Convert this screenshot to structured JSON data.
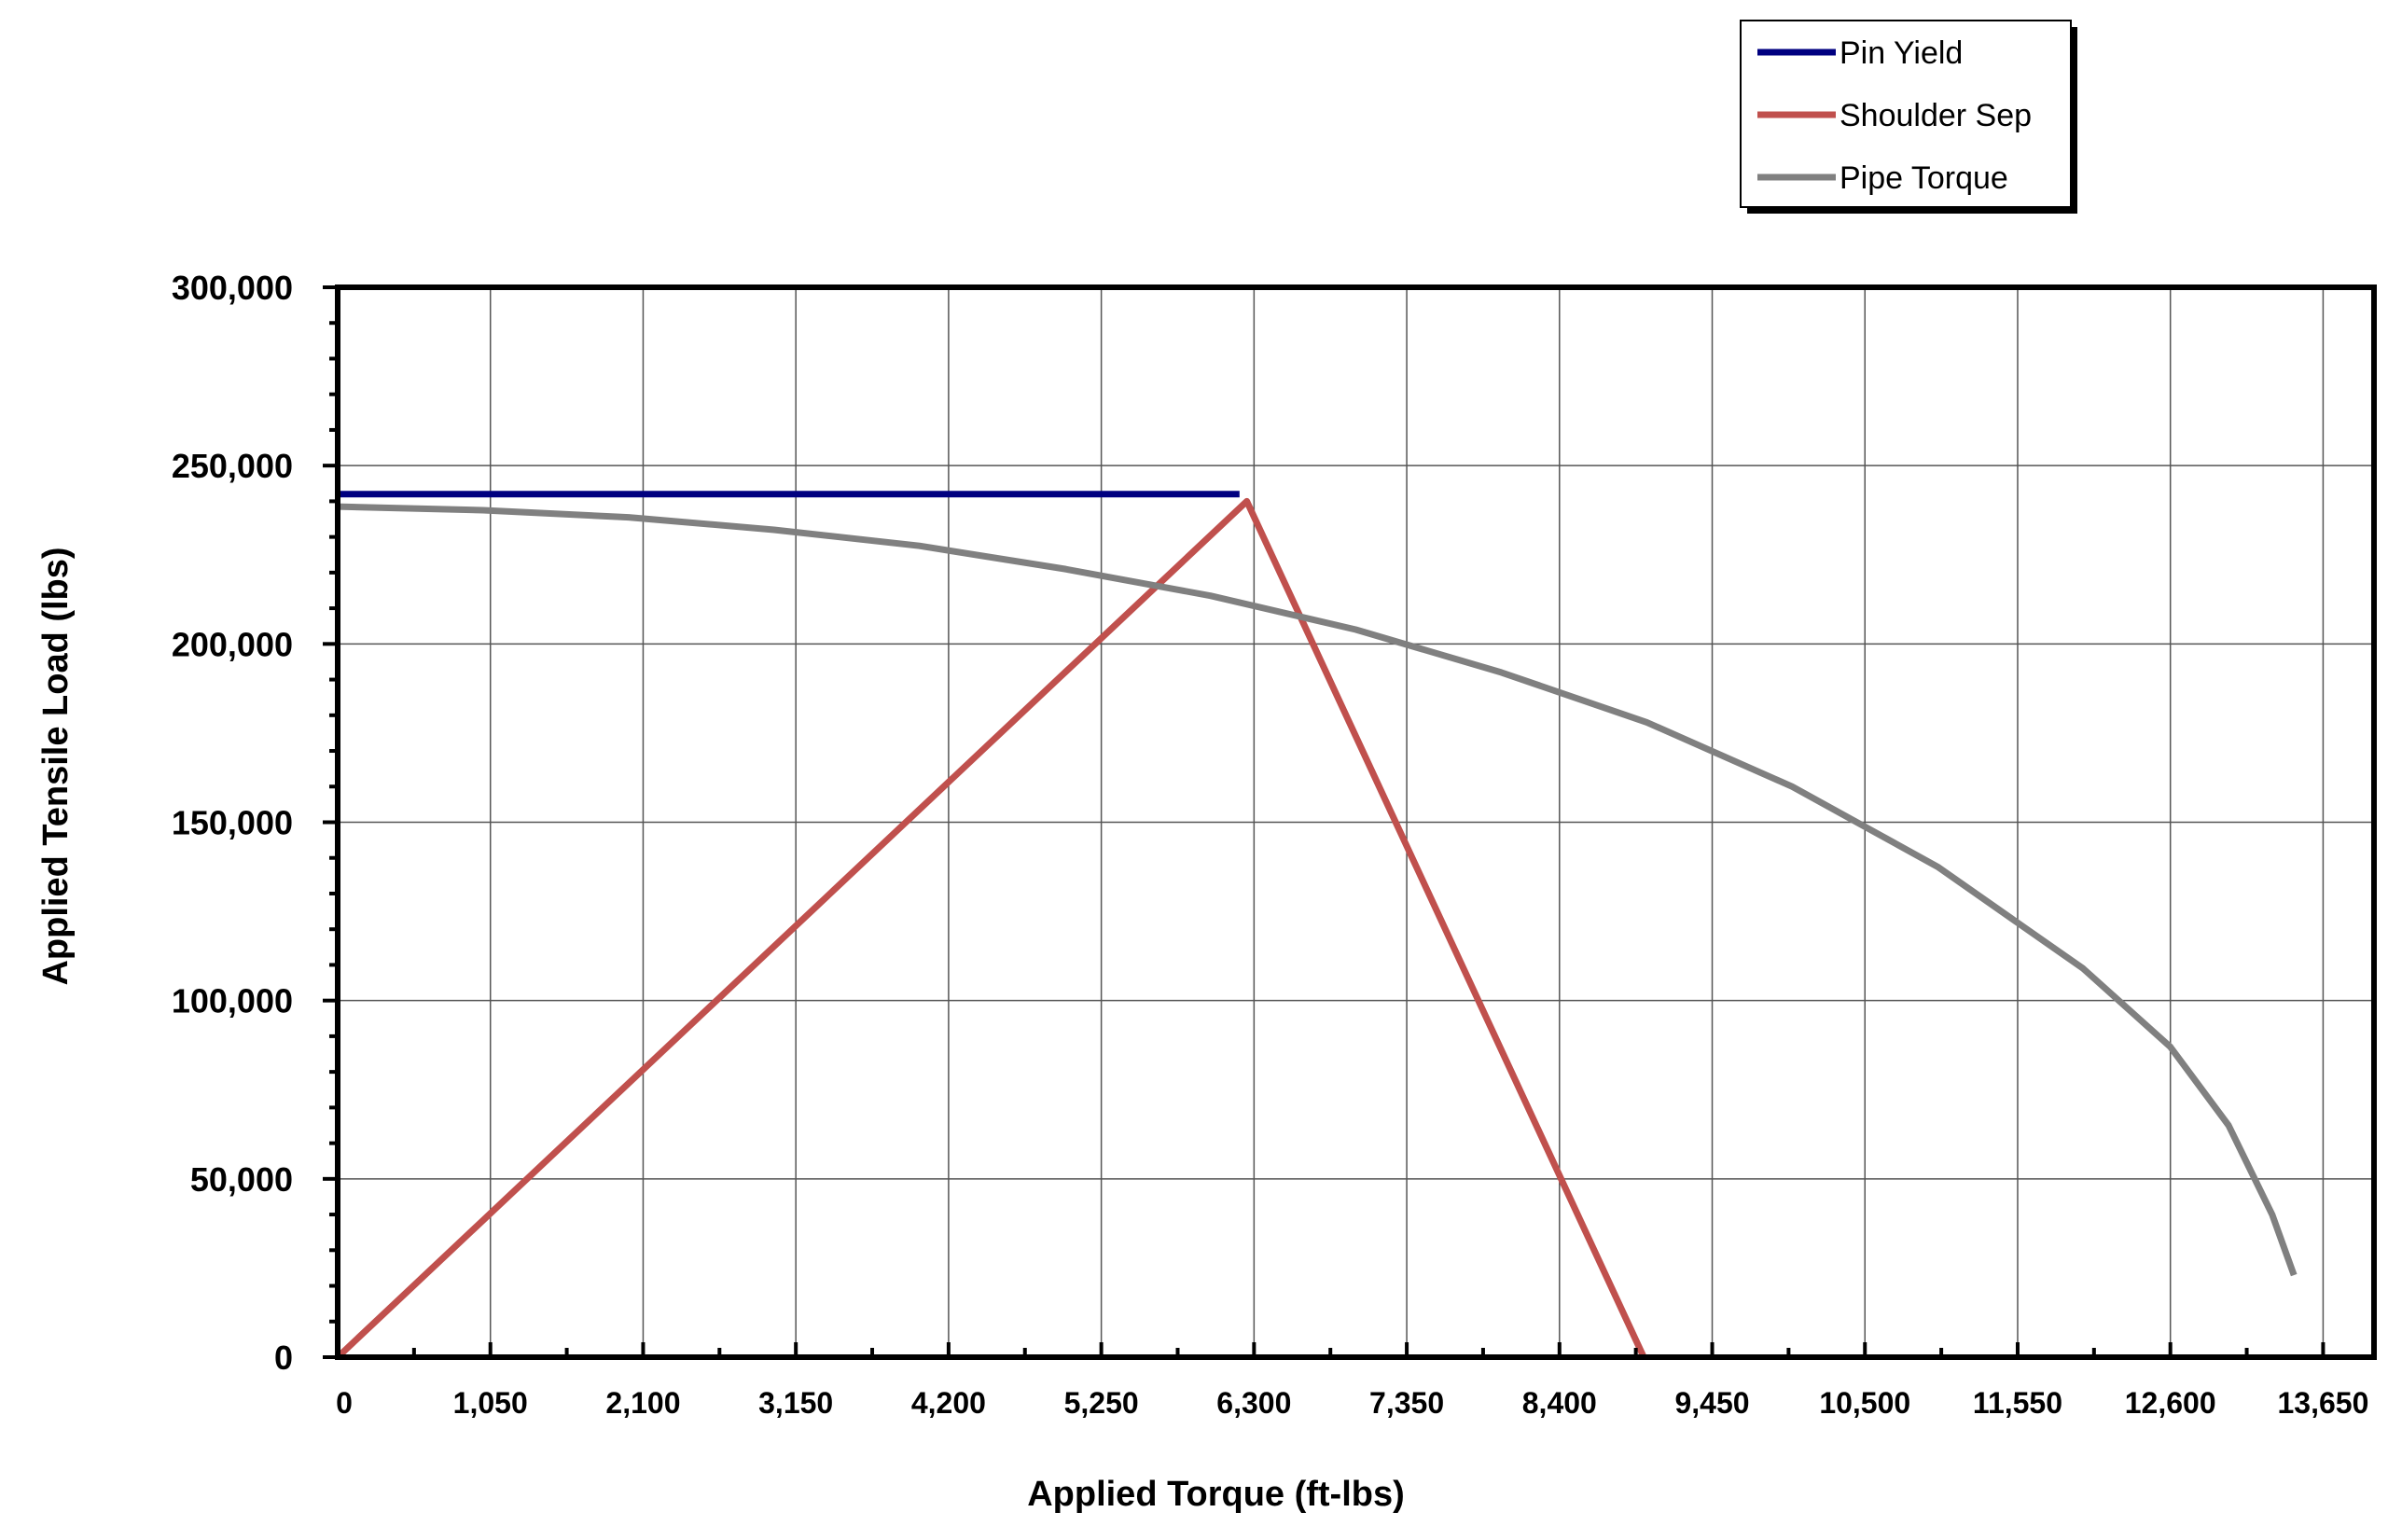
{
  "chart_data": {
    "type": "line",
    "xlabel": "Applied Torque (ft-lbs)",
    "ylabel": "Applied Tensile Load (lbs)",
    "xlim": [
      0,
      14000
    ],
    "ylim": [
      0,
      300000
    ],
    "x_ticks": [
      0,
      1050,
      2100,
      3150,
      4200,
      5250,
      6300,
      7350,
      8400,
      9450,
      10500,
      11550,
      12600,
      13650
    ],
    "x_tick_labels": [
      "0",
      "1,050",
      "2,100",
      "3,150",
      "4,200",
      "5,250",
      "6,300",
      "7,350",
      "8,400",
      "9,450",
      "10,500",
      "11,550",
      "12,600",
      "13,650"
    ],
    "y_ticks": [
      0,
      50000,
      100000,
      150000,
      200000,
      250000,
      300000
    ],
    "y_tick_labels": [
      "0",
      "50,000",
      "100,000",
      "150,000",
      "200,000",
      "250,000",
      "300,000"
    ],
    "grid": true,
    "legend_position": "top-right, outside plot",
    "series": [
      {
        "name": "Pin Yield",
        "color": "#000080",
        "points": [
          [
            0,
            242000
          ],
          [
            6200,
            242000
          ]
        ]
      },
      {
        "name": "Shoulder Sep",
        "color": "#c0504d",
        "points": [
          [
            0,
            0
          ],
          [
            6250,
            240000
          ],
          [
            8980,
            0
          ]
        ]
      },
      {
        "name": "Pipe Torque",
        "color": "#808080",
        "points": [
          [
            0,
            238500
          ],
          [
            1000,
            237500
          ],
          [
            2000,
            235500
          ],
          [
            3000,
            232000
          ],
          [
            4000,
            227500
          ],
          [
            5000,
            221000
          ],
          [
            6000,
            213500
          ],
          [
            7000,
            204000
          ],
          [
            8000,
            192000
          ],
          [
            9000,
            178000
          ],
          [
            10000,
            160000
          ],
          [
            11000,
            137500
          ],
          [
            12000,
            109000
          ],
          [
            12600,
            87000
          ],
          [
            13000,
            65000
          ],
          [
            13300,
            40000
          ],
          [
            13450,
            23000
          ]
        ]
      }
    ]
  }
}
